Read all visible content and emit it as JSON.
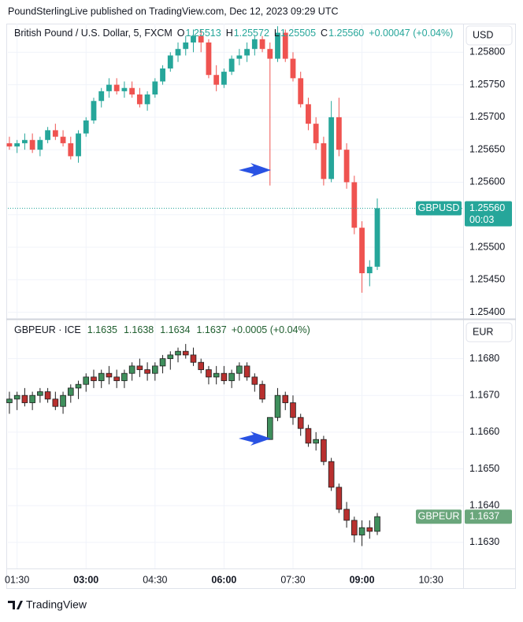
{
  "header": "PoundSterlingLive published on TradingView.com, Dec 12, 2023 09:29 UTC",
  "footer": "TradingView",
  "chart_data": [
    {
      "type": "candlestick",
      "title": "British Pound / U.S. Dollar, 5, FXCM",
      "legend_keys": [
        "O",
        "H",
        "L",
        "C"
      ],
      "legend_values": [
        "1.25513",
        "1.25572",
        "1.25505",
        "1.25560"
      ],
      "change": "+0.00047 (+0.04%)",
      "currency": "USD",
      "symbol": "GBPUSD",
      "last_label": "1.25560",
      "countdown": "00:03",
      "up_color": "#26a69a",
      "down_color": "#ef5350",
      "badge_color": "#26a69a",
      "grid": true,
      "x": [
        80,
        90,
        100,
        110,
        120,
        130,
        140,
        150,
        160,
        170,
        180,
        190,
        200,
        210,
        220,
        230,
        240,
        250,
        260,
        270,
        280,
        290,
        300,
        310,
        320,
        330,
        340,
        350,
        360,
        370,
        380,
        390,
        400,
        410,
        420,
        430,
        440,
        450,
        460,
        470,
        480,
        490,
        500,
        510,
        520,
        530,
        540,
        550,
        560
      ],
      "open": [
        1.2566,
        1.25655,
        1.2566,
        1.25665,
        1.2565,
        1.25665,
        1.2568,
        1.2567,
        1.2566,
        1.2564,
        1.25675,
        1.25695,
        1.25725,
        1.2574,
        1.2575,
        1.2574,
        1.25745,
        1.25735,
        1.2572,
        1.25735,
        1.25755,
        1.25775,
        1.25795,
        1.25805,
        1.25815,
        1.25825,
        1.25815,
        1.25765,
        1.2575,
        1.2577,
        1.2579,
        1.25795,
        1.25805,
        1.2582,
        1.25805,
        1.2579,
        1.2583,
        1.2579,
        1.2576,
        1.2572,
        1.2569,
        1.2566,
        1.25605,
        1.257,
        1.2565,
        1.256,
        1.2553,
        1.2546,
        1.2547
      ],
      "high": [
        1.2567,
        1.25665,
        1.25675,
        1.25675,
        1.2567,
        1.25685,
        1.2569,
        1.2568,
        1.2567,
        1.2568,
        1.257,
        1.2573,
        1.25745,
        1.2576,
        1.2576,
        1.25755,
        1.25755,
        1.25745,
        1.2574,
        1.2576,
        1.2578,
        1.258,
        1.25815,
        1.25825,
        1.25835,
        1.25835,
        1.2582,
        1.2578,
        1.25775,
        1.25795,
        1.25805,
        1.25815,
        1.25825,
        1.25825,
        1.25815,
        1.2584,
        1.25835,
        1.258,
        1.2577,
        1.2573,
        1.257,
        1.2567,
        1.25725,
        1.2573,
        1.2566,
        1.2561,
        1.2554,
        1.2548,
        1.25575
      ],
      "low": [
        1.2565,
        1.25645,
        1.2565,
        1.25645,
        1.2564,
        1.2566,
        1.25665,
        1.25655,
        1.25635,
        1.2563,
        1.2567,
        1.2569,
        1.25715,
        1.2573,
        1.25735,
        1.2573,
        1.2573,
        1.25715,
        1.2571,
        1.2573,
        1.2575,
        1.2577,
        1.25785,
        1.25795,
        1.258,
        1.258,
        1.2576,
        1.2574,
        1.25745,
        1.25765,
        1.2578,
        1.25785,
        1.25795,
        1.258,
        1.25595,
        1.25785,
        1.25785,
        1.25755,
        1.25715,
        1.2568,
        1.2565,
        1.25595,
        1.256,
        1.2564,
        1.2559,
        1.2552,
        1.2543,
        1.2544,
        1.25465
      ],
      "close": [
        1.25655,
        1.2566,
        1.25665,
        1.2565,
        1.25665,
        1.2568,
        1.2567,
        1.2566,
        1.2564,
        1.25675,
        1.25695,
        1.25725,
        1.2574,
        1.2575,
        1.2574,
        1.25745,
        1.25735,
        1.2572,
        1.25735,
        1.25755,
        1.25775,
        1.25795,
        1.25805,
        1.25815,
        1.25825,
        1.25815,
        1.25765,
        1.2575,
        1.2577,
        1.2579,
        1.25795,
        1.25805,
        1.2582,
        1.25805,
        1.2579,
        1.2583,
        1.2579,
        1.2576,
        1.2572,
        1.2569,
        1.2566,
        1.25605,
        1.257,
        1.2565,
        1.256,
        1.2553,
        1.2546,
        1.2547,
        1.2556
      ],
      "xlim": [
        78,
        672
      ],
      "ylim": [
        1.25391,
        1.25844
      ],
      "yticks": [
        {
          "value": 1.254,
          "label": "1.25400"
        },
        {
          "value": 1.2545,
          "label": "1.25450"
        },
        {
          "value": 1.255,
          "label": "1.25500"
        },
        {
          "value": 1.2555,
          "label": "1.25550"
        },
        {
          "value": 1.256,
          "label": "1.25600"
        },
        {
          "value": 1.2565,
          "label": "1.25650"
        },
        {
          "value": 1.257,
          "label": "1.25700"
        },
        {
          "value": 1.2575,
          "label": "1.25750"
        },
        {
          "value": 1.258,
          "label": "1.25800"
        }
      ]
    },
    {
      "type": "candlestick",
      "title": "GBPEUR · ICE",
      "legend_values": [
        "1.1635",
        "1.1638",
        "1.1634",
        "1.1637"
      ],
      "change": "+0.0005 (+0.04%)",
      "currency": "EUR",
      "symbol": "GBPEUR",
      "last_label": "1.1637",
      "up_color": "#3f8f5c",
      "down_color": "#b8302f",
      "outline": "#1e1e1e",
      "badge_color": "#6aa67c",
      "grid": true,
      "x": [
        80,
        90,
        100,
        110,
        120,
        130,
        140,
        150,
        160,
        170,
        180,
        190,
        200,
        210,
        220,
        230,
        240,
        250,
        260,
        270,
        280,
        290,
        300,
        310,
        320,
        330,
        340,
        350,
        360,
        370,
        380,
        390,
        400,
        410,
        420,
        430,
        440,
        450,
        460,
        470,
        480,
        490,
        500,
        510,
        520,
        530,
        540,
        550,
        560
      ],
      "open": [
        1.1668,
        1.1669,
        1.167,
        1.1668,
        1.167,
        1.1671,
        1.1669,
        1.1667,
        1.167,
        1.1672,
        1.1673,
        1.1675,
        1.1674,
        1.1676,
        1.1675,
        1.1674,
        1.1676,
        1.1678,
        1.1677,
        1.1676,
        1.1678,
        1.168,
        1.1681,
        1.1682,
        1.1681,
        1.1679,
        1.1677,
        1.1675,
        1.1676,
        1.1674,
        1.1676,
        1.1678,
        1.1675,
        1.1673,
        1.1658,
        1.1664,
        1.167,
        1.1668,
        1.1664,
        1.1661,
        1.1657,
        1.1658,
        1.1652,
        1.1645,
        1.1639,
        1.1636,
        1.1632,
        1.1634,
        1.1633
      ],
      "high": [
        1.1671,
        1.1671,
        1.1672,
        1.1671,
        1.1672,
        1.1672,
        1.1671,
        1.1671,
        1.1673,
        1.1674,
        1.1676,
        1.1677,
        1.1677,
        1.1678,
        1.1677,
        1.1677,
        1.1679,
        1.168,
        1.1679,
        1.1679,
        1.1681,
        1.1682,
        1.1683,
        1.1684,
        1.1683,
        1.168,
        1.1678,
        1.1678,
        1.1678,
        1.1677,
        1.1679,
        1.1679,
        1.1676,
        1.1674,
        1.1664,
        1.1672,
        1.1671,
        1.167,
        1.1665,
        1.1662,
        1.166,
        1.1659,
        1.1653,
        1.1646,
        1.1641,
        1.1637,
        1.1636,
        1.1636,
        1.1638
      ],
      "low": [
        1.1665,
        1.1666,
        1.1667,
        1.1666,
        1.1668,
        1.1668,
        1.1666,
        1.1665,
        1.1668,
        1.1669,
        1.1671,
        1.1672,
        1.1672,
        1.1673,
        1.1672,
        1.1672,
        1.1674,
        1.1675,
        1.1674,
        1.1674,
        1.1676,
        1.1677,
        1.1679,
        1.168,
        1.1678,
        1.1676,
        1.1673,
        1.1673,
        1.1673,
        1.1672,
        1.1674,
        1.1674,
        1.1671,
        1.1668,
        1.1658,
        1.1663,
        1.1666,
        1.1662,
        1.1659,
        1.1656,
        1.1655,
        1.1651,
        1.1644,
        1.1638,
        1.1634,
        1.163,
        1.1629,
        1.1631,
        1.1632
      ],
      "close": [
        1.1669,
        1.167,
        1.1668,
        1.167,
        1.1671,
        1.1669,
        1.1667,
        1.167,
        1.1672,
        1.1673,
        1.1675,
        1.1674,
        1.1676,
        1.1675,
        1.1674,
        1.1676,
        1.1678,
        1.1677,
        1.1676,
        1.1678,
        1.168,
        1.1681,
        1.1682,
        1.1681,
        1.1679,
        1.1677,
        1.1675,
        1.1676,
        1.1674,
        1.1676,
        1.1678,
        1.1675,
        1.1673,
        1.1669,
        1.1664,
        1.167,
        1.1668,
        1.1664,
        1.1661,
        1.1657,
        1.1658,
        1.1652,
        1.1645,
        1.1639,
        1.1636,
        1.1632,
        1.1634,
        1.1633,
        1.1637
      ],
      "xlim": [
        78,
        672
      ],
      "ylim": [
        1.16229,
        1.16904
      ],
      "yticks": [
        {
          "value": 1.163,
          "label": "1.1630"
        },
        {
          "value": 1.164,
          "label": "1.1640"
        },
        {
          "value": 1.165,
          "label": "1.1650"
        },
        {
          "value": 1.166,
          "label": "1.1660"
        },
        {
          "value": 1.167,
          "label": "1.1670"
        },
        {
          "value": 1.168,
          "label": "1.1680"
        }
      ],
      "xticks": [
        {
          "value": 90,
          "label": "01:30"
        },
        {
          "value": 180,
          "label": "03:00"
        },
        {
          "value": 270,
          "label": "04:30"
        },
        {
          "value": 360,
          "label": "06:00"
        },
        {
          "value": 450,
          "label": "07:30"
        },
        {
          "value": 540,
          "label": "09:00"
        },
        {
          "value": 630,
          "label": "10:30"
        }
      ]
    }
  ]
}
